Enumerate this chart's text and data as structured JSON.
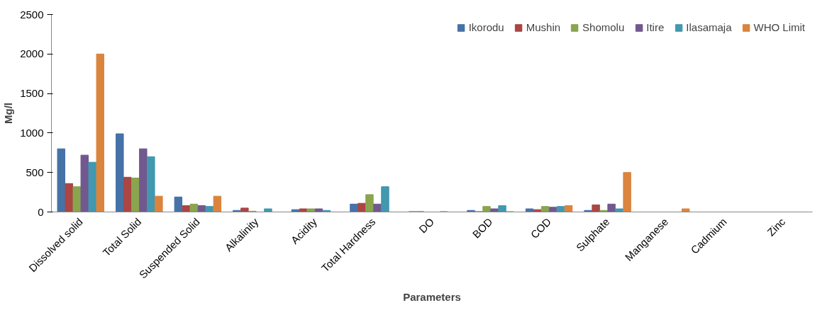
{
  "chart_data": {
    "type": "bar",
    "xlabel": "Parameters",
    "ylabel": "Mg/l",
    "categories": [
      "Dissolved solid",
      "Total Solid",
      "Suspended Solid",
      "Alkalinity",
      "Acidity",
      "Total Hardness",
      "DO",
      "BOD",
      "COD",
      "Sulphate",
      "Manganese",
      "Cadmium",
      "Zinc"
    ],
    "series": [
      {
        "name": "Ikorodu",
        "color": "#4572a7",
        "values": [
          800,
          990,
          190,
          20,
          30,
          100,
          5,
          20,
          40,
          20,
          0,
          0,
          0
        ]
      },
      {
        "name": "Mushin",
        "color": "#aa4643",
        "values": [
          360,
          440,
          80,
          50,
          40,
          110,
          5,
          5,
          30,
          90,
          0,
          0,
          0
        ]
      },
      {
        "name": "Shomolu",
        "color": "#89a54e",
        "values": [
          320,
          430,
          100,
          10,
          40,
          220,
          null,
          70,
          70,
          20,
          0,
          0,
          0
        ]
      },
      {
        "name": "Itire",
        "color": "#71588f",
        "values": [
          720,
          800,
          80,
          0,
          40,
          100,
          null,
          40,
          60,
          100,
          0,
          0,
          0
        ]
      },
      {
        "name": "Ilasamaja",
        "color": "#4198af",
        "values": [
          630,
          700,
          70,
          40,
          20,
          320,
          5,
          80,
          70,
          40,
          0,
          0,
          0
        ]
      },
      {
        "name": "WHO Limit",
        "color": "#db843d",
        "values": [
          2000,
          200,
          200,
          null,
          null,
          null,
          null,
          5,
          80,
          500,
          40,
          0,
          0
        ]
      }
    ],
    "ylim": [
      0,
      2500
    ],
    "yticks": [
      0,
      500,
      1000,
      1500,
      2000,
      2500
    ],
    "grid": false,
    "legend": "top right"
  }
}
